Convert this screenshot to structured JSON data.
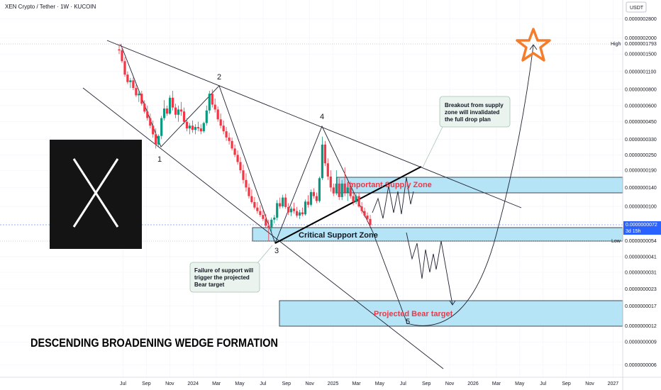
{
  "header": {
    "symbol_line": "XEN Crypto / Tether · 1W · KUCOIN",
    "currency_button": "USDT"
  },
  "colors": {
    "up": "#089981",
    "down": "#f23645",
    "zone_fill": "#b4e4f6",
    "zone_border": "#1e2230",
    "star": "#f57c2b",
    "callout_fill": "#eaf3ee",
    "callout_border": "#a7c4b4",
    "price_tag": "#2962ff"
  },
  "chart_data": {
    "type": "candlestick",
    "yscale": "log",
    "x_ticks": [
      "Jul",
      "Sep",
      "Nov",
      "2024",
      "Mar",
      "May",
      "Jul",
      "Sep",
      "Nov",
      "2025",
      "Mar",
      "May",
      "Jul",
      "Sep",
      "Nov",
      "2026",
      "Mar",
      "May",
      "Jul",
      "Sep",
      "Nov",
      "2027"
    ],
    "y_ticks": [
      "0.0000002800",
      "0.0000002000",
      "0.0000001500",
      "0.0000001100",
      "0.0000000800",
      "0.0000000600",
      "0.0000000450",
      "0.0000000330",
      "0.0000000250",
      "0.0000000190",
      "0.0000000140",
      "0.0000000100",
      "0.0000000054",
      "0.0000000041",
      "0.0000000031",
      "0.0000000023",
      "0.0000000017",
      "0.0000000012",
      "0.0000000009",
      "0.0000000006"
    ],
    "high": {
      "label": "High",
      "value": "0.0000001793"
    },
    "low": {
      "label": "Low",
      "value": "0.0000000054"
    },
    "last_price": {
      "value": "0.0000000072",
      "countdown": "3d 15h"
    },
    "wave_labels": [
      "1",
      "2",
      "3",
      "4",
      "5"
    ],
    "zones": {
      "supply": "Important Supply Zone",
      "support": "Critical Support Zone",
      "target": "Projected Bear target"
    },
    "callouts": {
      "breakout": [
        "Breakout from supply",
        "zone will invalidated",
        "the full drop plan"
      ],
      "failure": [
        "Failure of support will",
        "trigger the projected",
        "Bear target"
      ]
    },
    "formation_title": "DESCENDING BROADENING WEDGE FORMATION",
    "candles": [
      {
        "o": 0.163,
        "h": 0.179,
        "l": 0.15,
        "c": 0.16
      },
      {
        "o": 0.16,
        "h": 0.17,
        "l": 0.128,
        "c": 0.132
      },
      {
        "o": 0.132,
        "h": 0.142,
        "l": 0.1,
        "c": 0.104
      },
      {
        "o": 0.104,
        "h": 0.11,
        "l": 0.088,
        "c": 0.091
      },
      {
        "o": 0.091,
        "h": 0.098,
        "l": 0.082,
        "c": 0.094
      },
      {
        "o": 0.094,
        "h": 0.099,
        "l": 0.079,
        "c": 0.082
      },
      {
        "o": 0.082,
        "h": 0.087,
        "l": 0.07,
        "c": 0.072
      },
      {
        "o": 0.072,
        "h": 0.078,
        "l": 0.064,
        "c": 0.074
      },
      {
        "o": 0.074,
        "h": 0.078,
        "l": 0.06,
        "c": 0.062
      },
      {
        "o": 0.062,
        "h": 0.066,
        "l": 0.052,
        "c": 0.054
      },
      {
        "o": 0.054,
        "h": 0.06,
        "l": 0.046,
        "c": 0.048
      },
      {
        "o": 0.048,
        "h": 0.052,
        "l": 0.04,
        "c": 0.042
      },
      {
        "o": 0.042,
        "h": 0.046,
        "l": 0.034,
        "c": 0.036
      },
      {
        "o": 0.036,
        "h": 0.04,
        "l": 0.028,
        "c": 0.03
      },
      {
        "o": 0.03,
        "h": 0.036,
        "l": 0.029,
        "c": 0.035
      },
      {
        "o": 0.035,
        "h": 0.05,
        "l": 0.033,
        "c": 0.048
      },
      {
        "o": 0.048,
        "h": 0.066,
        "l": 0.046,
        "c": 0.057
      },
      {
        "o": 0.057,
        "h": 0.06,
        "l": 0.05,
        "c": 0.052
      },
      {
        "o": 0.052,
        "h": 0.072,
        "l": 0.051,
        "c": 0.069
      },
      {
        "o": 0.069,
        "h": 0.078,
        "l": 0.055,
        "c": 0.058
      },
      {
        "o": 0.058,
        "h": 0.062,
        "l": 0.048,
        "c": 0.051
      },
      {
        "o": 0.051,
        "h": 0.06,
        "l": 0.045,
        "c": 0.056
      },
      {
        "o": 0.056,
        "h": 0.064,
        "l": 0.05,
        "c": 0.054
      },
      {
        "o": 0.054,
        "h": 0.058,
        "l": 0.043,
        "c": 0.045
      },
      {
        "o": 0.045,
        "h": 0.048,
        "l": 0.038,
        "c": 0.04
      },
      {
        "o": 0.04,
        "h": 0.044,
        "l": 0.036,
        "c": 0.042
      },
      {
        "o": 0.042,
        "h": 0.046,
        "l": 0.037,
        "c": 0.039
      },
      {
        "o": 0.039,
        "h": 0.043,
        "l": 0.036,
        "c": 0.041
      },
      {
        "o": 0.041,
        "h": 0.045,
        "l": 0.038,
        "c": 0.04
      },
      {
        "o": 0.04,
        "h": 0.043,
        "l": 0.036,
        "c": 0.038
      },
      {
        "o": 0.038,
        "h": 0.045,
        "l": 0.037,
        "c": 0.044
      },
      {
        "o": 0.044,
        "h": 0.06,
        "l": 0.042,
        "c": 0.055
      },
      {
        "o": 0.055,
        "h": 0.078,
        "l": 0.052,
        "c": 0.074
      },
      {
        "o": 0.074,
        "h": 0.08,
        "l": 0.058,
        "c": 0.061
      },
      {
        "o": 0.061,
        "h": 0.068,
        "l": 0.053,
        "c": 0.056
      },
      {
        "o": 0.056,
        "h": 0.059,
        "l": 0.045,
        "c": 0.047
      },
      {
        "o": 0.047,
        "h": 0.052,
        "l": 0.04,
        "c": 0.042
      },
      {
        "o": 0.042,
        "h": 0.046,
        "l": 0.036,
        "c": 0.038
      },
      {
        "o": 0.038,
        "h": 0.041,
        "l": 0.032,
        "c": 0.034
      },
      {
        "o": 0.034,
        "h": 0.037,
        "l": 0.03,
        "c": 0.032
      },
      {
        "o": 0.032,
        "h": 0.034,
        "l": 0.027,
        "c": 0.028
      },
      {
        "o": 0.028,
        "h": 0.03,
        "l": 0.024,
        "c": 0.025
      },
      {
        "o": 0.025,
        "h": 0.027,
        "l": 0.021,
        "c": 0.022
      },
      {
        "o": 0.022,
        "h": 0.024,
        "l": 0.018,
        "c": 0.019
      },
      {
        "o": 0.019,
        "h": 0.021,
        "l": 0.015,
        "c": 0.016
      },
      {
        "o": 0.016,
        "h": 0.018,
        "l": 0.013,
        "c": 0.014
      },
      {
        "o": 0.014,
        "h": 0.015,
        "l": 0.0115,
        "c": 0.012
      },
      {
        "o": 0.012,
        "h": 0.0135,
        "l": 0.0105,
        "c": 0.0108
      },
      {
        "o": 0.0108,
        "h": 0.0118,
        "l": 0.0095,
        "c": 0.0098
      },
      {
        "o": 0.0098,
        "h": 0.0108,
        "l": 0.0088,
        "c": 0.0092
      },
      {
        "o": 0.0092,
        "h": 0.0102,
        "l": 0.0083,
        "c": 0.0086
      },
      {
        "o": 0.0086,
        "h": 0.0094,
        "l": 0.0077,
        "c": 0.008
      },
      {
        "o": 0.008,
        "h": 0.0087,
        "l": 0.0069,
        "c": 0.0071
      },
      {
        "o": 0.0071,
        "h": 0.0079,
        "l": 0.0054,
        "c": 0.0068
      },
      {
        "o": 0.0068,
        "h": 0.0082,
        "l": 0.0064,
        "c": 0.0079
      },
      {
        "o": 0.0079,
        "h": 0.0086,
        "l": 0.0074,
        "c": 0.0082
      },
      {
        "o": 0.0082,
        "h": 0.0112,
        "l": 0.0078,
        "c": 0.0106
      },
      {
        "o": 0.0106,
        "h": 0.0117,
        "l": 0.0096,
        "c": 0.01
      },
      {
        "o": 0.01,
        "h": 0.0123,
        "l": 0.0097,
        "c": 0.0117
      },
      {
        "o": 0.0117,
        "h": 0.0125,
        "l": 0.0096,
        "c": 0.0099
      },
      {
        "o": 0.0099,
        "h": 0.0106,
        "l": 0.0086,
        "c": 0.009
      },
      {
        "o": 0.009,
        "h": 0.01,
        "l": 0.0084,
        "c": 0.0096
      },
      {
        "o": 0.0096,
        "h": 0.0107,
        "l": 0.0088,
        "c": 0.0092
      },
      {
        "o": 0.0092,
        "h": 0.0099,
        "l": 0.0082,
        "c": 0.0085
      },
      {
        "o": 0.0085,
        "h": 0.0094,
        "l": 0.008,
        "c": 0.009
      },
      {
        "o": 0.009,
        "h": 0.0098,
        "l": 0.0084,
        "c": 0.0087
      },
      {
        "o": 0.0087,
        "h": 0.0113,
        "l": 0.0085,
        "c": 0.0109
      },
      {
        "o": 0.0109,
        "h": 0.0122,
        "l": 0.0098,
        "c": 0.0103
      },
      {
        "o": 0.0103,
        "h": 0.0135,
        "l": 0.01,
        "c": 0.0129
      },
      {
        "o": 0.0129,
        "h": 0.0138,
        "l": 0.0115,
        "c": 0.012
      },
      {
        "o": 0.012,
        "h": 0.0128,
        "l": 0.0106,
        "c": 0.011
      },
      {
        "o": 0.011,
        "h": 0.017,
        "l": 0.0107,
        "c": 0.0165
      },
      {
        "o": 0.0165,
        "h": 0.0345,
        "l": 0.016,
        "c": 0.03
      },
      {
        "o": 0.03,
        "h": 0.032,
        "l": 0.0205,
        "c": 0.0215
      },
      {
        "o": 0.0215,
        "h": 0.0235,
        "l": 0.016,
        "c": 0.017
      },
      {
        "o": 0.017,
        "h": 0.019,
        "l": 0.013,
        "c": 0.014
      },
      {
        "o": 0.014,
        "h": 0.015,
        "l": 0.012,
        "c": 0.0126
      },
      {
        "o": 0.0126,
        "h": 0.019,
        "l": 0.0122,
        "c": 0.015
      },
      {
        "o": 0.015,
        "h": 0.0165,
        "l": 0.0112,
        "c": 0.0118
      },
      {
        "o": 0.0118,
        "h": 0.016,
        "l": 0.0112,
        "c": 0.015
      },
      {
        "o": 0.015,
        "h": 0.02,
        "l": 0.012,
        "c": 0.0128
      },
      {
        "o": 0.0128,
        "h": 0.015,
        "l": 0.011,
        "c": 0.014
      },
      {
        "o": 0.014,
        "h": 0.0155,
        "l": 0.0115,
        "c": 0.012
      },
      {
        "o": 0.012,
        "h": 0.013,
        "l": 0.0102,
        "c": 0.0108
      },
      {
        "o": 0.0108,
        "h": 0.0125,
        "l": 0.0104,
        "c": 0.012
      },
      {
        "o": 0.012,
        "h": 0.0128,
        "l": 0.0098,
        "c": 0.01
      },
      {
        "o": 0.01,
        "h": 0.0108,
        "l": 0.0088,
        "c": 0.0092
      },
      {
        "o": 0.0092,
        "h": 0.0098,
        "l": 0.0082,
        "c": 0.0085
      },
      {
        "o": 0.0085,
        "h": 0.009,
        "l": 0.0076,
        "c": 0.008
      },
      {
        "o": 0.008,
        "h": 0.0086,
        "l": 0.007,
        "c": 0.0072
      }
    ]
  }
}
